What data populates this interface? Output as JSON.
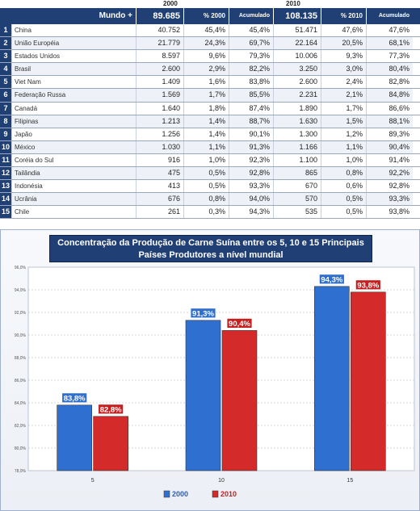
{
  "table": {
    "years": [
      "2000",
      "2010"
    ],
    "header": {
      "label": "Mundo +",
      "total_2000": "89.685",
      "pct_2000": "% 2000",
      "acc_2000": "Acumulado",
      "total_2010": "108.135",
      "pct_2010": "% 2010",
      "acc_2010": "Acumulado"
    },
    "rows": [
      {
        "idx": "1",
        "name": "China",
        "v2000": "40.752",
        "p2000": "45,4%",
        "a2000": "45,4%",
        "v2010": "51.471",
        "p2010": "47,6%",
        "a2010": "47,6%"
      },
      {
        "idx": "2",
        "name": "União Européia",
        "v2000": "21.779",
        "p2000": "24,3%",
        "a2000": "69,7%",
        "v2010": "22.164",
        "p2010": "20,5%",
        "a2010": "68,1%"
      },
      {
        "idx": "3",
        "name": "Estados Unidos",
        "v2000": "8.597",
        "p2000": "9,6%",
        "a2000": "79,3%",
        "v2010": "10.006",
        "p2010": "9,3%",
        "a2010": "77,3%"
      },
      {
        "idx": "4",
        "name": "Brasil",
        "v2000": "2.600",
        "p2000": "2,9%",
        "a2000": "82,2%",
        "v2010": "3.250",
        "p2010": "3,0%",
        "a2010": "80,4%"
      },
      {
        "idx": "5",
        "name": "Viet Nam",
        "v2000": "1.409",
        "p2000": "1,6%",
        "a2000": "83,8%",
        "v2010": "2.600",
        "p2010": "2,4%",
        "a2010": "82,8%"
      },
      {
        "idx": "6",
        "name": "Federação Russa",
        "v2000": "1.569",
        "p2000": "1,7%",
        "a2000": "85,5%",
        "v2010": "2.231",
        "p2010": "2,1%",
        "a2010": "84,8%"
      },
      {
        "idx": "7",
        "name": "Canadá",
        "v2000": "1.640",
        "p2000": "1,8%",
        "a2000": "87,4%",
        "v2010": "1.890",
        "p2010": "1,7%",
        "a2010": "86,6%"
      },
      {
        "idx": "8",
        "name": "Filipinas",
        "v2000": "1.213",
        "p2000": "1,4%",
        "a2000": "88,7%",
        "v2010": "1.630",
        "p2010": "1,5%",
        "a2010": "88,1%"
      },
      {
        "idx": "9",
        "name": "Japão",
        "v2000": "1.256",
        "p2000": "1,4%",
        "a2000": "90,1%",
        "v2010": "1.300",
        "p2010": "1,2%",
        "a2010": "89,3%"
      },
      {
        "idx": "10",
        "name": "México",
        "v2000": "1.030",
        "p2000": "1,1%",
        "a2000": "91,3%",
        "v2010": "1.166",
        "p2010": "1,1%",
        "a2010": "90,4%"
      },
      {
        "idx": "11",
        "name": "Coréia do Sul",
        "v2000": "916",
        "p2000": "1,0%",
        "a2000": "92,3%",
        "v2010": "1.100",
        "p2010": "1,0%",
        "a2010": "91,4%"
      },
      {
        "idx": "12",
        "name": "Tailândia",
        "v2000": "475",
        "p2000": "0,5%",
        "a2000": "92,8%",
        "v2010": "865",
        "p2010": "0,8%",
        "a2010": "92,2%"
      },
      {
        "idx": "13",
        "name": "Indonésia",
        "v2000": "413",
        "p2000": "0,5%",
        "a2000": "93,3%",
        "v2010": "670",
        "p2010": "0,6%",
        "a2010": "92,8%"
      },
      {
        "idx": "14",
        "name": "Ucrânia",
        "v2000": "676",
        "p2000": "0,8%",
        "a2000": "94,0%",
        "v2010": "570",
        "p2010": "0,5%",
        "a2010": "93,3%"
      },
      {
        "idx": "15",
        "name": "Chile",
        "v2000": "261",
        "p2000": "0,3%",
        "a2000": "94,3%",
        "v2010": "535",
        "p2010": "0,5%",
        "a2010": "93,8%"
      }
    ]
  },
  "chart_data": {
    "type": "bar",
    "title": "Concentração da Produção de Carne Suína entre os 5, 10 e 15 Principais Países Produtores a nível mundial",
    "title_lines": [
      "Concentração da Produção de Carne Suína entre os 5, 10 e 15 Principais",
      "Países Produtores a nível mundial"
    ],
    "categories": [
      "5",
      "10",
      "15"
    ],
    "series": [
      {
        "name": "2000",
        "values": [
          83.8,
          91.3,
          94.3
        ],
        "labels": [
          "83,8%",
          "91,3%",
          "94,3%"
        ],
        "color": "#2f6fd0"
      },
      {
        "name": "2010",
        "values": [
          82.8,
          90.4,
          93.8
        ],
        "labels": [
          "82,8%",
          "90,4%",
          "93,8%"
        ],
        "color": "#d42a2a"
      }
    ],
    "ylim": [
      78,
      96
    ],
    "yticks": [
      78,
      80,
      82,
      84,
      86,
      88,
      90,
      92,
      94,
      96
    ],
    "ytick_labels": [
      "78,0%",
      "80,0%",
      "82,0%",
      "84,0%",
      "86,0%",
      "88,0%",
      "90,0%",
      "92,0%",
      "94,0%",
      "96,0%"
    ],
    "grid": true,
    "legend_position": "bottom-center",
    "xlabel": "",
    "ylabel": ""
  }
}
